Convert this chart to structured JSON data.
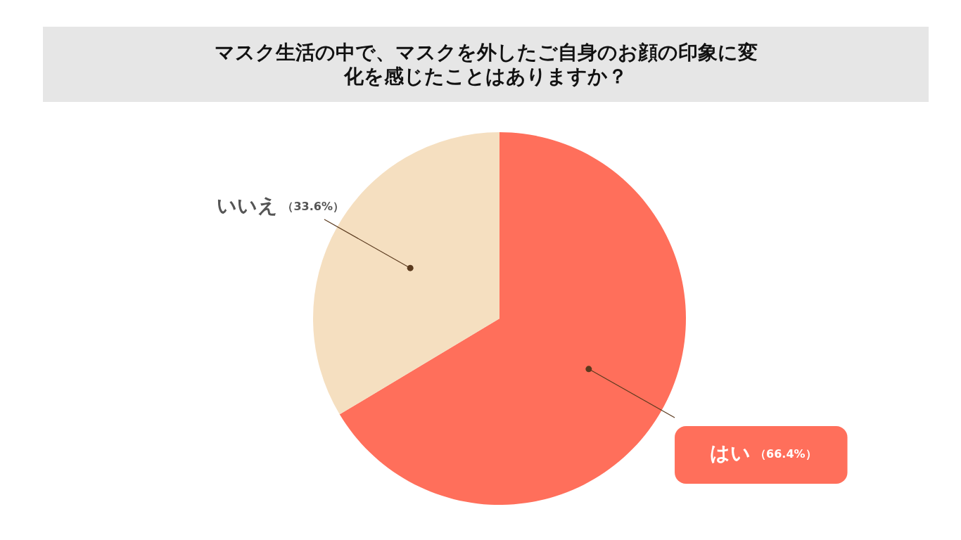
{
  "chart_data": {
    "type": "pie",
    "title": "マスク生活の中で、マスクを外したご自身のお顔の印象に変化を感じたことはありますか？",
    "categories": [
      "はい",
      "いいえ"
    ],
    "values": [
      66.4,
      33.6
    ],
    "colors": [
      "#ff6f5b",
      "#f5dfc0"
    ],
    "value_labels": [
      "（66.4%）",
      "（33.6%）"
    ]
  }
}
